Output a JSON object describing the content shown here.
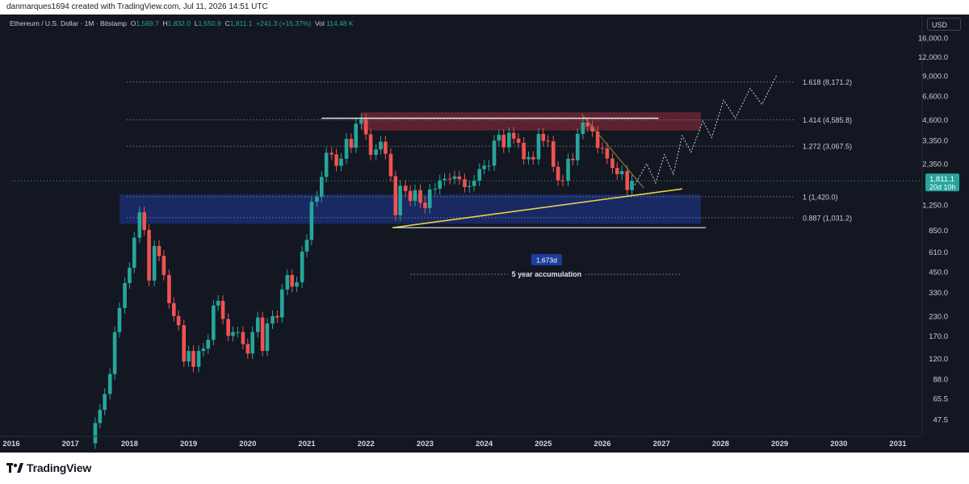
{
  "header": {
    "creator": "danmarques1694 created with TradingView.com, Jul 11, 2026 14:51 UTC"
  },
  "legend": {
    "symbol": "Ethereum / U.S. Dollar · 1M · Bitstamp",
    "o_label": "O",
    "o_value": "1,569.7",
    "h_label": "H",
    "h_value": "1,832.0",
    "l_label": "L",
    "l_value": "1,550.9",
    "c_label": "C",
    "c_value": "1,811.1",
    "change": "+241.3 (+15.37%)",
    "vol_label": "Vol",
    "vol_value": "114.48 K"
  },
  "currency_button": "USD",
  "brand": {
    "name": "TradingView"
  },
  "colors": {
    "background": "#131722",
    "up": "#26a69a",
    "down": "#ef5350",
    "grid_line": "#787b86",
    "resistance_zone": "#6b2433",
    "accumulation_zone": "#1a2d6e",
    "trendline": "#e8d24a",
    "support_line": "#cfd9f2",
    "projection": "#d1d4dc"
  },
  "chart_data": {
    "type": "candlestick",
    "scale": "log",
    "x_axis_years": [
      "2016",
      "2017",
      "2018",
      "2019",
      "2020",
      "2021",
      "2022",
      "2023",
      "2024",
      "2025",
      "2026",
      "2027",
      "2028",
      "2029",
      "2030",
      "2031"
    ],
    "y_ticks": [
      "16,000.0",
      "12,000.0",
      "9,000.0",
      "6,600.0",
      "4,600.0",
      "3,350.0",
      "2,350.0",
      "1,250.0",
      "850.0",
      "610.0",
      "450.0",
      "330.0",
      "230.0",
      "170.0",
      "120.0",
      "88.0",
      "65.5",
      "47.5"
    ],
    "y_tick_values": [
      16000,
      12000,
      9000,
      6600,
      4600,
      3350,
      2350,
      1250,
      850,
      610,
      450,
      330,
      230,
      170,
      120,
      88,
      65.5,
      47.5
    ],
    "last_price": {
      "label": "1,811.1",
      "countdown": "20d 10h",
      "value": 1811.1
    },
    "fib_levels": [
      {
        "label": "1.618 (8,171.2)",
        "value": 8171.2
      },
      {
        "label": "1.414 (4,585.8)",
        "value": 4585.8
      },
      {
        "label": "1.272 (3,067.5)",
        "value": 3067.5
      },
      {
        "label": "1 (1,420.0)",
        "value": 1420.0
      },
      {
        "label": "0.887 (1,031.2)",
        "value": 1031.2
      }
    ],
    "zones": [
      {
        "name": "resistance",
        "from": "2021-12",
        "to": "2027-09",
        "low": 3900,
        "high": 5150
      },
      {
        "name": "accumulation",
        "from": "2017-11",
        "to": "2027-09",
        "low": 940,
        "high": 1470
      }
    ],
    "range_measure": {
      "label": "1,673d",
      "caption": "5 year accumulation",
      "from": "2022-10",
      "to": "2027-05"
    },
    "monthly_closes": [
      [
        2017.42,
        45
      ],
      [
        2017.5,
        55
      ],
      [
        2017.58,
        70
      ],
      [
        2017.67,
        95
      ],
      [
        2017.75,
        180
      ],
      [
        2017.83,
        260
      ],
      [
        2017.92,
        380
      ],
      [
        2018.0,
        480
      ],
      [
        2018.08,
        760
      ],
      [
        2018.17,
        1120
      ],
      [
        2018.25,
        855
      ],
      [
        2018.33,
        395
      ],
      [
        2018.42,
        670
      ],
      [
        2018.5,
        575
      ],
      [
        2018.58,
        430
      ],
      [
        2018.67,
        280
      ],
      [
        2018.75,
        230
      ],
      [
        2018.83,
        200
      ],
      [
        2018.92,
        115
      ],
      [
        2019.0,
        135
      ],
      [
        2019.08,
        106
      ],
      [
        2019.17,
        135
      ],
      [
        2019.25,
        140
      ],
      [
        2019.33,
        160
      ],
      [
        2019.42,
        270
      ],
      [
        2019.5,
        290
      ],
      [
        2019.58,
        220
      ],
      [
        2019.67,
        170
      ],
      [
        2019.75,
        180
      ],
      [
        2019.83,
        180
      ],
      [
        2019.92,
        150
      ],
      [
        2020.0,
        130
      ],
      [
        2020.08,
        180
      ],
      [
        2020.17,
        225
      ],
      [
        2020.25,
        135
      ],
      [
        2020.33,
        205
      ],
      [
        2020.42,
        230
      ],
      [
        2020.5,
        225
      ],
      [
        2020.58,
        345
      ],
      [
        2020.67,
        430
      ],
      [
        2020.75,
        360
      ],
      [
        2020.83,
        385
      ],
      [
        2020.92,
        615
      ],
      [
        2021.0,
        735
      ],
      [
        2021.08,
        1315
      ],
      [
        2021.17,
        1420
      ],
      [
        2021.25,
        1920
      ],
      [
        2021.33,
        2775
      ],
      [
        2021.42,
        2705
      ],
      [
        2021.5,
        2275
      ],
      [
        2021.58,
        2535
      ],
      [
        2021.67,
        3430
      ],
      [
        2021.75,
        3000
      ],
      [
        2021.83,
        4325
      ],
      [
        2021.92,
        4630
      ],
      [
        2022.0,
        3680
      ],
      [
        2022.08,
        2690
      ],
      [
        2022.17,
        2920
      ],
      [
        2022.25,
        3285
      ],
      [
        2022.33,
        2730
      ],
      [
        2022.42,
        1940
      ],
      [
        2022.5,
        1070
      ],
      [
        2022.58,
        1680
      ],
      [
        2022.67,
        1550
      ],
      [
        2022.75,
        1330
      ],
      [
        2022.83,
        1570
      ],
      [
        2022.92,
        1295
      ],
      [
        2023.0,
        1195
      ],
      [
        2023.08,
        1585
      ],
      [
        2023.17,
        1605
      ],
      [
        2023.25,
        1820
      ],
      [
        2023.33,
        1870
      ],
      [
        2023.42,
        1865
      ],
      [
        2023.5,
        1935
      ],
      [
        2023.58,
        1855
      ],
      [
        2023.67,
        1645
      ],
      [
        2023.75,
        1670
      ],
      [
        2023.83,
        1815
      ],
      [
        2023.92,
        2165
      ],
      [
        2024.0,
        2280
      ],
      [
        2024.08,
        2280
      ],
      [
        2024.17,
        3340
      ],
      [
        2024.25,
        3650
      ],
      [
        2024.33,
        3015
      ],
      [
        2024.42,
        3760
      ],
      [
        2024.5,
        3445
      ],
      [
        2024.58,
        3230
      ],
      [
        2024.67,
        2515
      ],
      [
        2024.75,
        2600
      ],
      [
        2024.83,
        2510
      ],
      [
        2024.92,
        3700
      ],
      [
        2025.0,
        3330
      ],
      [
        2025.08,
        3300
      ],
      [
        2025.17,
        2240
      ],
      [
        2025.25,
        1820
      ],
      [
        2025.33,
        1810
      ],
      [
        2025.42,
        2530
      ],
      [
        2025.5,
        2480
      ],
      [
        2025.58,
        3700
      ],
      [
        2025.67,
        4400
      ],
      [
        2025.75,
        4150
      ],
      [
        2025.83,
        3840
      ],
      [
        2025.92,
        2990
      ],
      [
        2026.0,
        2970
      ],
      [
        2026.08,
        2540
      ],
      [
        2026.17,
        2200
      ],
      [
        2026.25,
        2000
      ],
      [
        2026.33,
        2100
      ],
      [
        2026.42,
        1570
      ],
      [
        2026.5,
        1811.1
      ]
    ]
  }
}
